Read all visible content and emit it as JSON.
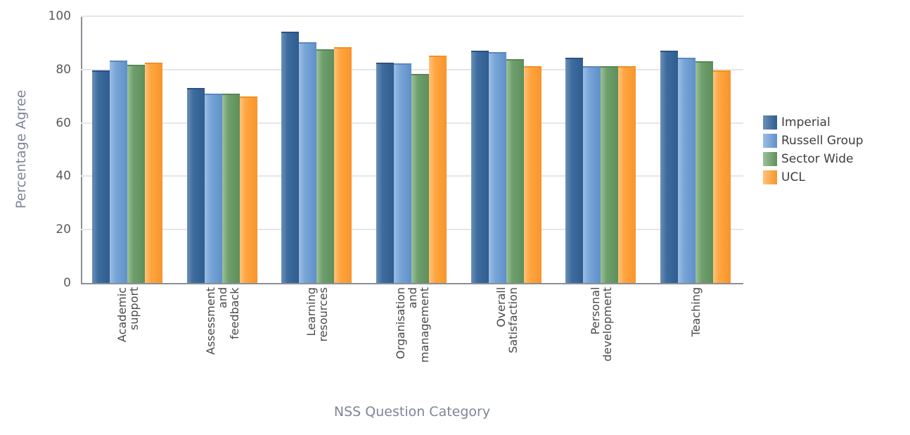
{
  "chart_data": {
    "type": "bar",
    "title": "",
    "xlabel": "NSS Question Category",
    "ylabel": "Percentage Agree",
    "ylim": [
      0,
      100
    ],
    "yticks": [
      0,
      20,
      40,
      60,
      80,
      100
    ],
    "grid": true,
    "legend_position": "right",
    "categories": [
      "Academic support",
      "Assessment and feedback",
      "Learning resources",
      "Organisation and management",
      "Overall Satisfaction",
      "Personal development",
      "Teaching"
    ],
    "category_labels_wrapped": [
      "Academic\nsupport",
      "Assessment\nand\nfeedback",
      "Learning\nresources",
      "Organisation\nand\nmanagement",
      "Overall\nSatisfaction",
      "Personal\ndevelopment",
      "Teaching"
    ],
    "series": [
      {
        "name": "Imperial",
        "color": "#3a6698",
        "values": [
          79.6,
          73.0,
          94.2,
          82.7,
          87.1,
          84.5,
          87.1
        ]
      },
      {
        "name": "Russell Group",
        "color": "#6f9fd4",
        "values": [
          83.3,
          70.9,
          90.3,
          82.3,
          86.5,
          81.3,
          84.5
        ]
      },
      {
        "name": "Sector Wide",
        "color": "#6a9a67",
        "values": [
          81.8,
          70.9,
          87.6,
          78.4,
          83.9,
          81.3,
          83.2
        ]
      },
      {
        "name": "UCL",
        "color": "#ffa23a",
        "values": [
          82.7,
          69.9,
          88.3,
          85.1,
          81.3,
          81.3,
          79.8
        ]
      }
    ]
  }
}
